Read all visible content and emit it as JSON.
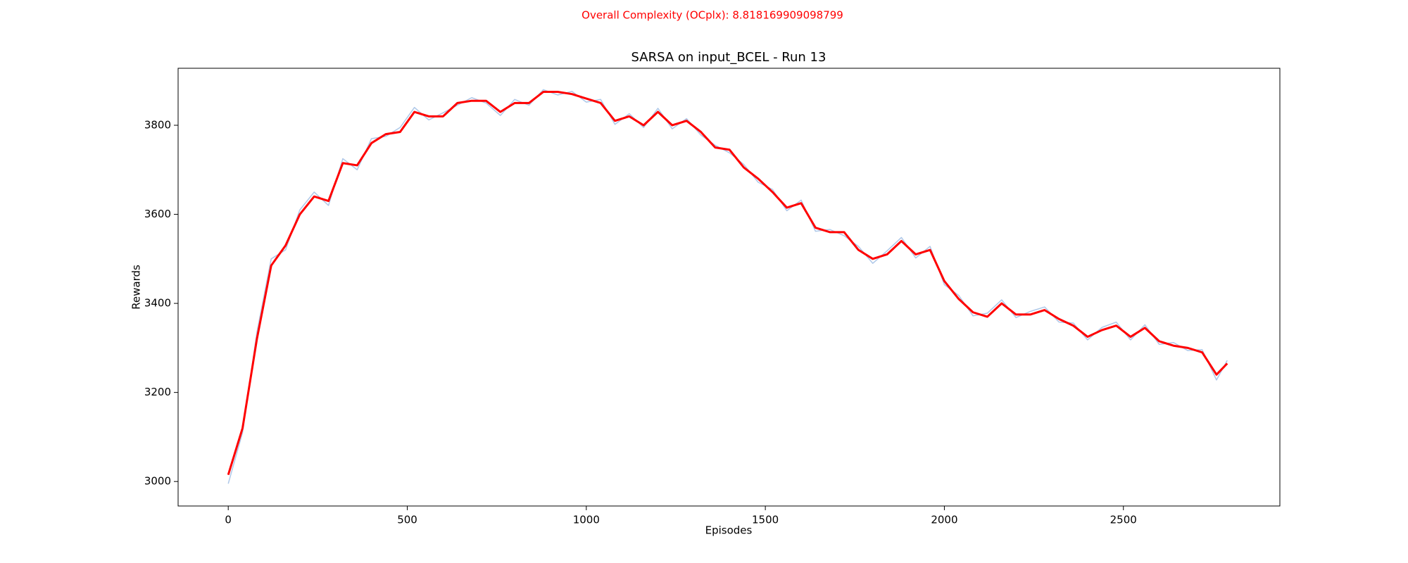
{
  "chart_data": {
    "type": "line",
    "suptitle": "Overall Complexity (OCplx): 8.818169909098799",
    "suptitle_color": "#ff0000",
    "title": "SARSA on input_BCEL - Run 13",
    "xlabel": "Episodes",
    "ylabel": "Rewards",
    "x": [
      0,
      40,
      80,
      120,
      160,
      200,
      240,
      280,
      320,
      360,
      400,
      440,
      480,
      520,
      560,
      600,
      640,
      680,
      720,
      760,
      800,
      840,
      880,
      920,
      960,
      1000,
      1040,
      1080,
      1120,
      1160,
      1200,
      1240,
      1280,
      1320,
      1360,
      1400,
      1440,
      1480,
      1520,
      1560,
      1600,
      1640,
      1680,
      1720,
      1760,
      1800,
      1840,
      1880,
      1920,
      1960,
      2000,
      2040,
      2080,
      2120,
      2160,
      2200,
      2240,
      2280,
      2320,
      2360,
      2400,
      2440,
      2480,
      2520,
      2560,
      2600,
      2640,
      2680,
      2720,
      2760,
      2790
    ],
    "series": [
      {
        "color": "#aec7e8",
        "width": 1.5,
        "values": [
          2995,
          3110,
          3335,
          3500,
          3520,
          3610,
          3650,
          3620,
          3725,
          3700,
          3770,
          3775,
          3795,
          3840,
          3812,
          3828,
          3845,
          3862,
          3850,
          3822,
          3858,
          3845,
          3880,
          3868,
          3876,
          3852,
          3858,
          3802,
          3826,
          3795,
          3838,
          3792,
          3815,
          3778,
          3755,
          3738,
          3712,
          3672,
          3656,
          3608,
          3632,
          3562,
          3566,
          3552,
          3528,
          3490,
          3518,
          3548,
          3502,
          3528,
          3442,
          3418,
          3372,
          3378,
          3408,
          3368,
          3382,
          3392,
          3358,
          3356,
          3318,
          3346,
          3358,
          3318,
          3352,
          3308,
          3312,
          3294,
          3296,
          3228,
          3272
        ]
      },
      {
        "color": "#ff0000",
        "width": 3,
        "values": [
          3015,
          3120,
          3320,
          3485,
          3530,
          3600,
          3640,
          3630,
          3715,
          3710,
          3760,
          3780,
          3785,
          3830,
          3820,
          3820,
          3850,
          3855,
          3855,
          3830,
          3850,
          3850,
          3875,
          3875,
          3870,
          3860,
          3850,
          3810,
          3820,
          3800,
          3830,
          3800,
          3810,
          3785,
          3750,
          3745,
          3705,
          3680,
          3650,
          3615,
          3625,
          3570,
          3560,
          3560,
          3520,
          3500,
          3510,
          3540,
          3510,
          3520,
          3450,
          3410,
          3380,
          3370,
          3400,
          3375,
          3375,
          3385,
          3365,
          3350,
          3325,
          3340,
          3350,
          3325,
          3345,
          3315,
          3305,
          3300,
          3290,
          3240,
          3265
        ]
      }
    ],
    "xlim": [
      -140,
      2937
    ],
    "xticks": [
      0,
      500,
      1000,
      1500,
      2000,
      2500
    ],
    "ylim": [
      2945,
      3928
    ],
    "yticks": [
      3000,
      3200,
      3400,
      3600,
      3800
    ],
    "grid": false
  }
}
